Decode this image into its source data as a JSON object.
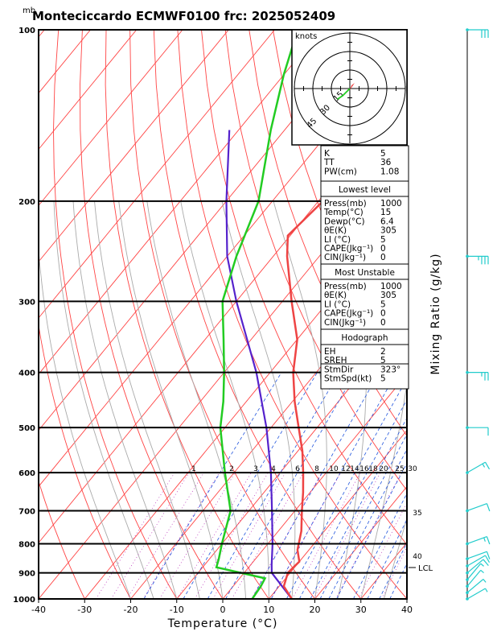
{
  "title": "Monteciccardo ECMWF0100  frc: 2025052409",
  "unit_top_left": "mb",
  "xlabel": "Temperature (°C)",
  "ylabel_right": "Mixing Ratio  (g/kg)",
  "hodograph": {
    "label": "knots",
    "ring_labels": [
      "15",
      "30",
      "45"
    ],
    "points": [
      [
        0,
        0
      ],
      [
        -2.5,
        -2.5
      ],
      [
        -4,
        -4
      ],
      [
        -5.5,
        -5
      ],
      [
        -7,
        -6
      ]
    ]
  },
  "indices": [
    {
      "label": "K",
      "value": "5"
    },
    {
      "label": "TT",
      "value": "36"
    },
    {
      "label": "PW(cm)",
      "value": "1.08"
    }
  ],
  "lowest_level": {
    "header": "Lowest level",
    "rows": [
      {
        "label": "Press(mb)",
        "value": "1000"
      },
      {
        "label": "Temp(°C)",
        "value": "15"
      },
      {
        "label": "Dewp(°C)",
        "value": "6.4"
      },
      {
        "label": "θE(K)",
        "value": "305"
      },
      {
        "label": "LI (°C)",
        "value": "5"
      },
      {
        "label": "CAPE(Jkg⁻¹)",
        "value": "0"
      },
      {
        "label": "CIN(Jkg⁻¹)",
        "value": "0"
      }
    ]
  },
  "most_unstable": {
    "header": "Most Unstable",
    "rows": [
      {
        "label": "Press(mb)",
        "value": "1000"
      },
      {
        "label": "θE(K)",
        "value": "305"
      },
      {
        "label": "LI (°C)",
        "value": "5"
      },
      {
        "label": "CAPE(Jkg⁻¹)",
        "value": "0"
      },
      {
        "label": "CIN(Jkg⁻¹)",
        "value": "0"
      }
    ]
  },
  "hodograph_stats": {
    "header": "Hodograph",
    "rows": [
      {
        "label": "EH",
        "value": "2"
      },
      {
        "label": "SREH",
        "value": "5"
      },
      {
        "label": "StmDir",
        "value": "323°"
      },
      {
        "label": "StmSpd(kt)",
        "value": "5"
      }
    ]
  },
  "lcl_label": "LCL",
  "colors": {
    "temperature": "#ee4444",
    "dewpoint": "#22cc22",
    "parcel": "#5522cc",
    "isotherm_dry": "#ff4444",
    "moist": "#aaaaaa",
    "mixing": "#2255dd",
    "mixing_label": "#aa00aa",
    "wind": "#22cccc"
  },
  "chart_data": {
    "type": "skew-t",
    "x_ticks": [
      -40,
      -30,
      -20,
      -10,
      0,
      10,
      20,
      30,
      40
    ],
    "xlim": [
      -40,
      40
    ],
    "pressure_levels": [
      100,
      200,
      300,
      400,
      500,
      600,
      700,
      800,
      900,
      1000
    ],
    "ylim": [
      1000,
      100
    ],
    "mixing_ratio_labels": [
      "1",
      "2",
      "3",
      "4",
      "6",
      "8",
      "10",
      "12",
      "14",
      "16",
      "18",
      "20",
      "25",
      "30",
      "35",
      "40"
    ],
    "temperature": [
      {
        "p": 1000,
        "t": 15.0
      },
      {
        "p": 950,
        "t": 11.0
      },
      {
        "p": 900,
        "t": 9.5
      },
      {
        "p": 860,
        "t": 10.0
      },
      {
        "p": 820,
        "t": 7.5
      },
      {
        "p": 760,
        "t": 5.0
      },
      {
        "p": 700,
        "t": 1.5
      },
      {
        "p": 650,
        "t": -1.5
      },
      {
        "p": 600,
        "t": -5.0
      },
      {
        "p": 550,
        "t": -9.0
      },
      {
        "p": 500,
        "t": -14.0
      },
      {
        "p": 450,
        "t": -19.5
      },
      {
        "p": 400,
        "t": -25.0
      },
      {
        "p": 350,
        "t": -30.0
      },
      {
        "p": 300,
        "t": -38.0
      },
      {
        "p": 250,
        "t": -47.0
      },
      {
        "p": 230,
        "t": -50.5
      },
      {
        "p": 200,
        "t": -49.0
      },
      {
        "p": 150,
        "t": -45.0
      },
      {
        "p": 120,
        "t": -41.0
      },
      {
        "p": 100,
        "t": -38.0
      }
    ],
    "dewpoint": [
      {
        "p": 1000,
        "t": 6.4
      },
      {
        "p": 950,
        "t": 6.0
      },
      {
        "p": 920,
        "t": 5.5
      },
      {
        "p": 880,
        "t": -7.0
      },
      {
        "p": 850,
        "t": -8.0
      },
      {
        "p": 800,
        "t": -10.0
      },
      {
        "p": 700,
        "t": -14.0
      },
      {
        "p": 600,
        "t": -22.0
      },
      {
        "p": 500,
        "t": -31.0
      },
      {
        "p": 450,
        "t": -35.0
      },
      {
        "p": 400,
        "t": -40.0
      },
      {
        "p": 350,
        "t": -46.0
      },
      {
        "p": 300,
        "t": -53.0
      },
      {
        "p": 250,
        "t": -58.0
      },
      {
        "p": 200,
        "t": -63.0
      },
      {
        "p": 150,
        "t": -73.0
      },
      {
        "p": 120,
        "t": -80.0
      },
      {
        "p": 100,
        "t": -85.0
      }
    ],
    "parcel": [
      {
        "p": 1000,
        "t": 15.0
      },
      {
        "p": 900,
        "t": 6.0
      },
      {
        "p": 870,
        "t": 4.5
      },
      {
        "p": 800,
        "t": 1.0
      },
      {
        "p": 700,
        "t": -5.0
      },
      {
        "p": 600,
        "t": -12.0
      },
      {
        "p": 500,
        "t": -21.0
      },
      {
        "p": 400,
        "t": -33.0
      },
      {
        "p": 300,
        "t": -50.0
      },
      {
        "p": 250,
        "t": -60.0
      },
      {
        "p": 200,
        "t": -70.0
      },
      {
        "p": 150,
        "t": -82.0
      }
    ],
    "lcl_pressure": 900,
    "wind_barbs": [
      {
        "p": 1000,
        "dir": 300,
        "kt": 5
      },
      {
        "p": 975,
        "dir": 310,
        "kt": 5
      },
      {
        "p": 950,
        "dir": 320,
        "kt": 5
      },
      {
        "p": 925,
        "dir": 320,
        "kt": 5
      },
      {
        "p": 900,
        "dir": 310,
        "kt": 10
      },
      {
        "p": 875,
        "dir": 300,
        "kt": 10
      },
      {
        "p": 850,
        "dir": 290,
        "kt": 10
      },
      {
        "p": 800,
        "dir": 290,
        "kt": 15
      },
      {
        "p": 700,
        "dir": 290,
        "kt": 10
      },
      {
        "p": 600,
        "dir": 300,
        "kt": 15
      },
      {
        "p": 500,
        "dir": 270,
        "kt": 10
      },
      {
        "p": 400,
        "dir": 270,
        "kt": 25
      },
      {
        "p": 250,
        "dir": 270,
        "kt": 35
      },
      {
        "p": 100,
        "dir": 270,
        "kt": 30
      }
    ]
  }
}
